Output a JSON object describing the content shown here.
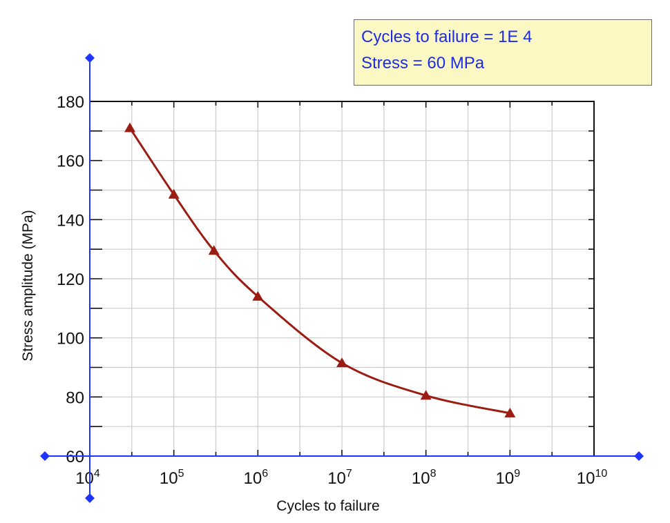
{
  "readout": {
    "cycles_text": "Cycles to failure = 1E 4",
    "stress_text": "Stress = 60 MPa"
  },
  "colors": {
    "series": "#9b1c12",
    "axis_cursor": "#1f35ff",
    "grid": "#cccccc",
    "frame": "#111111",
    "readout_bg": "#fbf8c4",
    "readout_text": "#1d2be6"
  },
  "chart_data": {
    "type": "line",
    "xlabel": "Cycles to failure",
    "ylabel": "Stress amplitude (MPa)",
    "x_scale": "log",
    "xlim": [
      10000,
      10000000000
    ],
    "ylim": [
      60,
      180
    ],
    "x_ticks": [
      {
        "base": "10",
        "exp": "4"
      },
      {
        "base": "10",
        "exp": "5"
      },
      {
        "base": "10",
        "exp": "6"
      },
      {
        "base": "10",
        "exp": "7"
      },
      {
        "base": "10",
        "exp": "8"
      },
      {
        "base": "10",
        "exp": "9"
      },
      {
        "base": "10",
        "exp": "10"
      }
    ],
    "y_ticks": [
      "60",
      "80",
      "100",
      "120",
      "140",
      "160",
      "180"
    ],
    "grid": true,
    "marker": "triangle",
    "series": [
      {
        "x": [
          30000,
          100000,
          300000,
          1000000,
          10000000,
          100000000,
          1000000000
        ],
        "y": [
          171,
          148.5,
          129.5,
          114,
          91.5,
          80.5,
          74.5
        ]
      }
    ]
  }
}
